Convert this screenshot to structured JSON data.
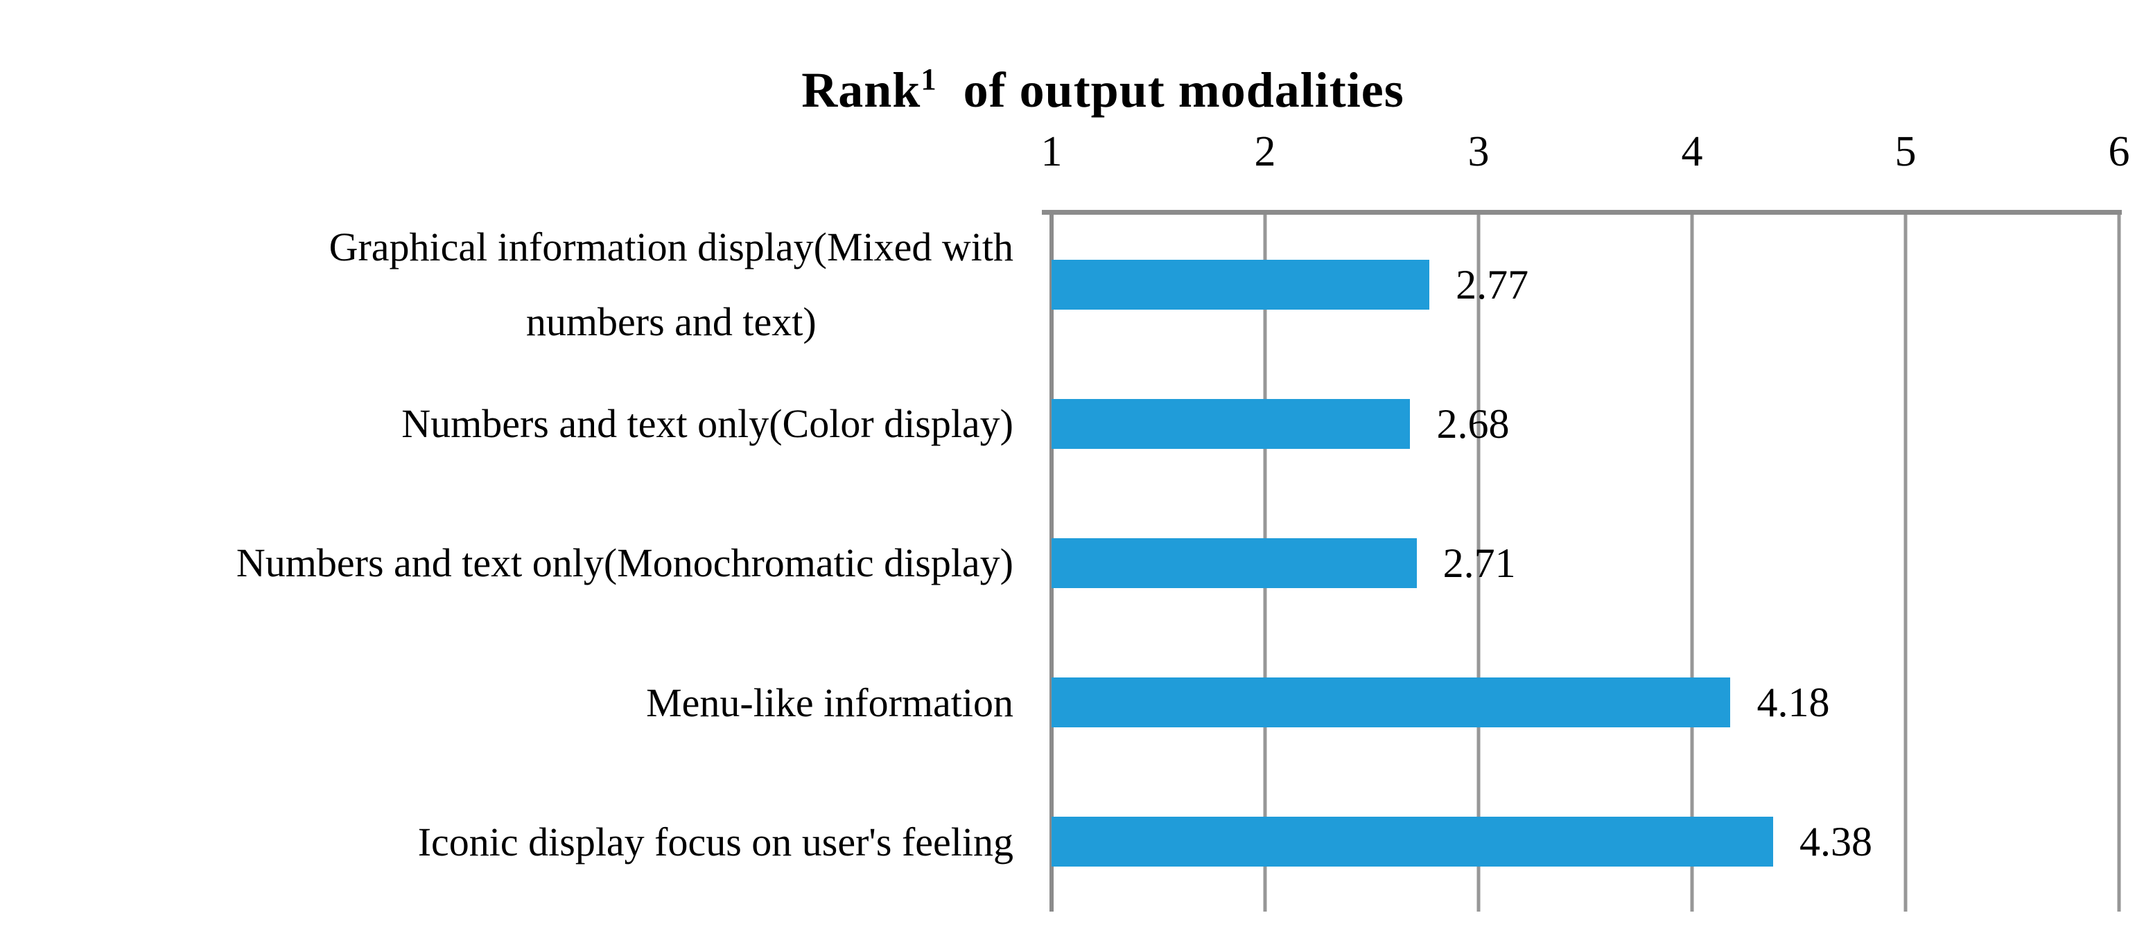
{
  "chart_data": {
    "type": "bar",
    "orientation": "horizontal",
    "title": {
      "prefix": "Rank",
      "superscript": "1",
      "rest": "  of output modalities"
    },
    "categories": [
      {
        "lines": [
          "Graphical information display(Mixed with",
          "numbers and text)"
        ]
      },
      {
        "lines": [
          "Numbers and text only(Color display)"
        ]
      },
      {
        "lines": [
          "Numbers and text only(Monochromatic display)"
        ]
      },
      {
        "lines": [
          "Menu-like information"
        ]
      },
      {
        "lines": [
          "Iconic display focus on user's   feeling"
        ]
      }
    ],
    "values": [
      2.77,
      2.68,
      2.71,
      4.18,
      4.38
    ],
    "value_labels": [
      "2.77",
      "2.68",
      "2.71",
      "4.18",
      "4.38"
    ],
    "x_ticks": [
      "1",
      "2",
      "3",
      "4",
      "5",
      "6"
    ],
    "xlim": [
      1,
      6
    ],
    "grid": true,
    "legend": false,
    "tick_position": "top",
    "bar_color": "#209CD9",
    "gridline_color": "#979797",
    "axis_color": "#8B8B8B",
    "text_color": "#000000"
  }
}
